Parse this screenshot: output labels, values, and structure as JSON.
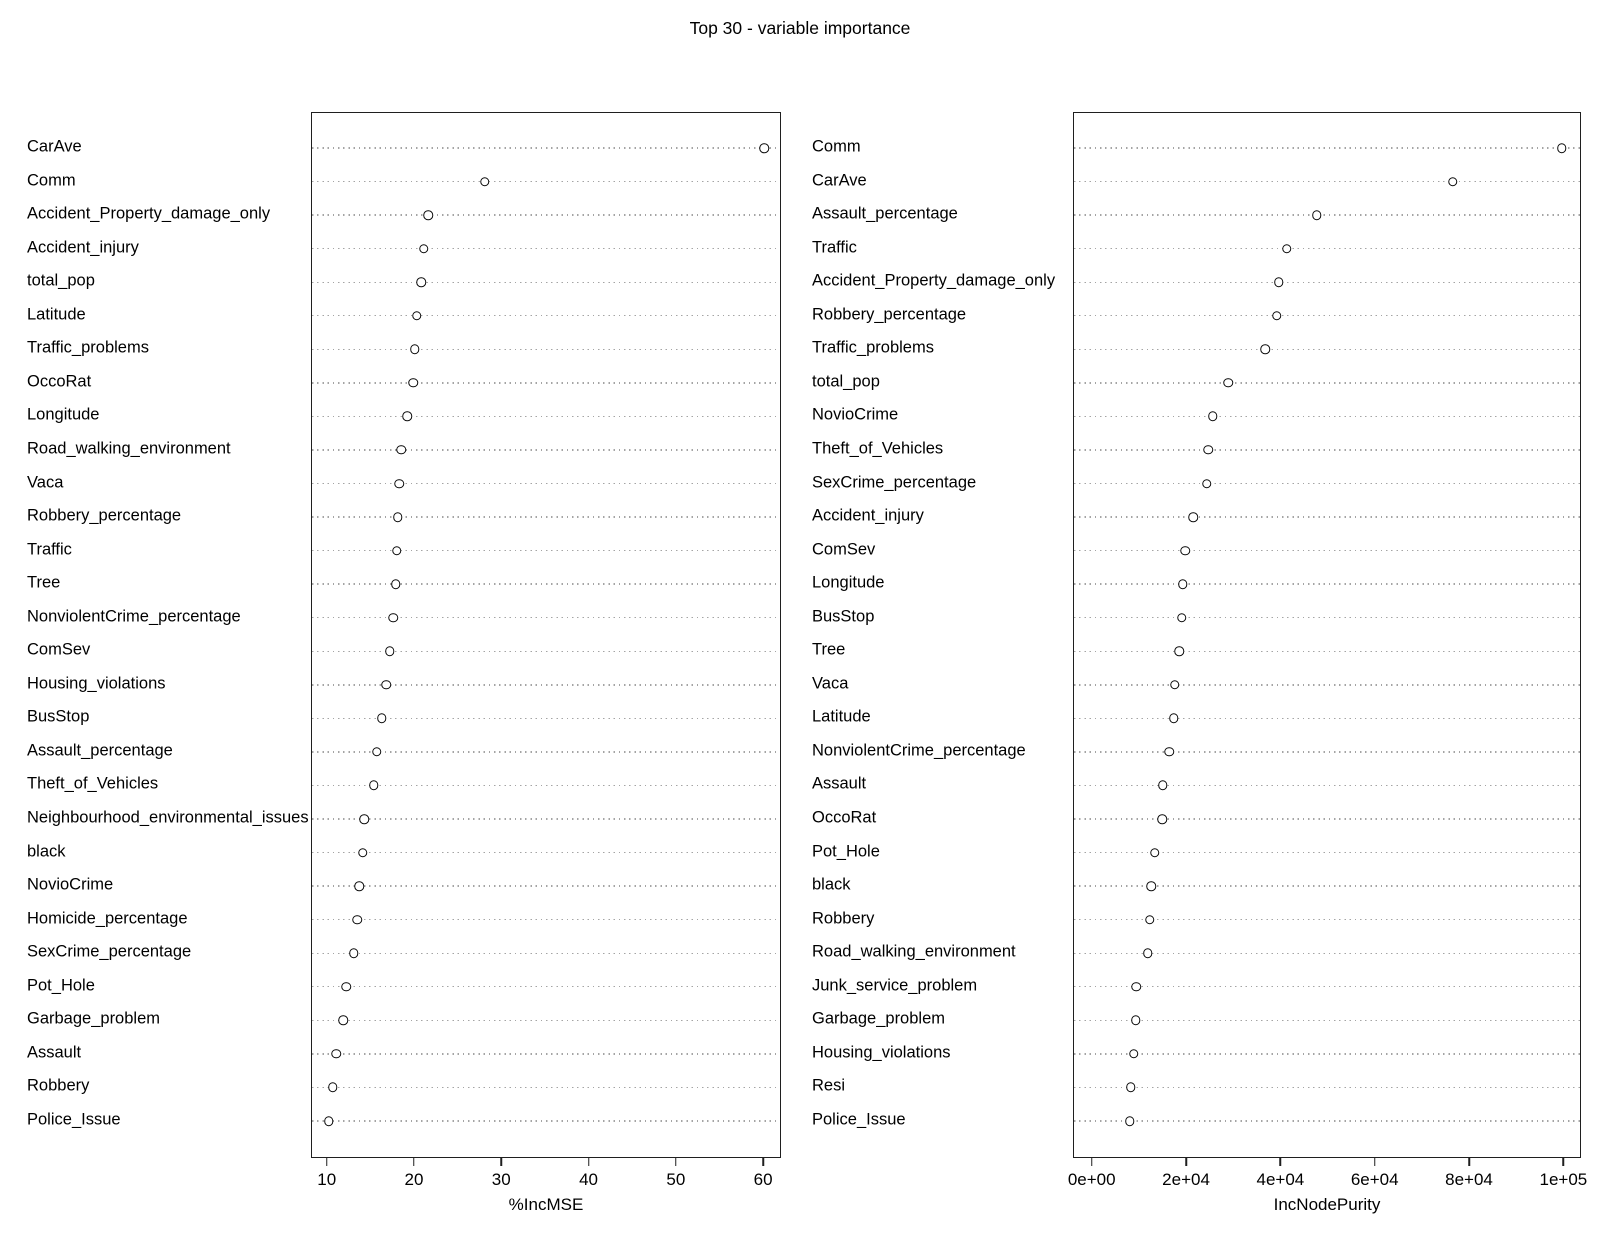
{
  "title": "Top 30 - variable importance",
  "colors": {
    "background": "#ffffff",
    "foreground": "#000000",
    "frame": "#1f1f1f",
    "grid_dots": "#a4a4a4",
    "point_stroke": "#0a0a0a"
  },
  "chart_data": [
    {
      "type": "scatter",
      "subtype": "dotchart",
      "panel": "left",
      "xlabel": "%IncMSE",
      "xlim": [
        8.2,
        62.05
      ],
      "xticks": [
        10,
        20,
        30,
        40,
        50,
        60
      ],
      "xtick_labels": [
        "10",
        "20",
        "30",
        "40",
        "50",
        "60"
      ],
      "grid": "dotted-horizontal",
      "legend": "none",
      "categories": [
        "CarAve",
        "Comm",
        "Accident_Property_damage_only",
        "Accident_injury",
        "total_pop",
        "Latitude",
        "Traffic_problems",
        "OccoRat",
        "Longitude",
        "Road_walking_environment",
        "Vaca",
        "Robbery_percentage",
        "Traffic",
        "Tree",
        "NonviolentCrime_percentage",
        "ComSev",
        "Housing_violations",
        "BusStop",
        "Assault_percentage",
        "Theft_of_Vehicles",
        "Neighbourhood_environmental_issues",
        "black",
        "NovioCrime",
        "Homicide_percentage",
        "SexCrime_percentage",
        "Pot_Hole",
        "Garbage_problem",
        "Assault",
        "Robbery",
        "Police_Issue"
      ],
      "values": [
        60.0,
        28.0,
        21.5,
        21.0,
        20.7,
        20.2,
        20.0,
        19.8,
        19.1,
        18.4,
        18.2,
        18.0,
        17.9,
        17.8,
        17.5,
        17.1,
        16.7,
        16.2,
        15.6,
        15.3,
        14.2,
        14.0,
        13.6,
        13.4,
        13.0,
        12.1,
        11.8,
        11.0,
        10.6,
        10.1
      ]
    },
    {
      "type": "scatter",
      "subtype": "dotchart",
      "panel": "right",
      "xlabel": "IncNodePurity",
      "xlim": [
        -3965,
        103740
      ],
      "xticks": [
        0,
        20000,
        40000,
        60000,
        80000,
        100000
      ],
      "xtick_labels": [
        "0e+00",
        "2e+04",
        "4e+04",
        "6e+04",
        "8e+04",
        "1e+05"
      ],
      "grid": "dotted-horizontal",
      "legend": "none",
      "categories": [
        "Comm",
        "CarAve",
        "Assault_percentage",
        "Traffic",
        "Accident_Property_damage_only",
        "Robbery_percentage",
        "Traffic_problems",
        "total_pop",
        "NovioCrime",
        "Theft_of_Vehicles",
        "SexCrime_percentage",
        "Accident_injury",
        "ComSev",
        "Longitude",
        "BusStop",
        "Tree",
        "Vaca",
        "Latitude",
        "NonviolentCrime_percentage",
        "Assault",
        "OccoRat",
        "Pot_Hole",
        "black",
        "Robbery",
        "Road_walking_environment",
        "Junk_service_problem",
        "Garbage_problem",
        "Housing_violations",
        "Resi",
        "Police_Issue"
      ],
      "values": [
        99400,
        76300,
        47500,
        41100,
        39400,
        39000,
        36600,
        28700,
        25400,
        24500,
        24200,
        21300,
        19600,
        19100,
        18900,
        18400,
        17400,
        17200,
        16200,
        14900,
        14700,
        13200,
        12400,
        12100,
        11700,
        9200,
        9100,
        8700,
        8100,
        7900
      ]
    }
  ]
}
